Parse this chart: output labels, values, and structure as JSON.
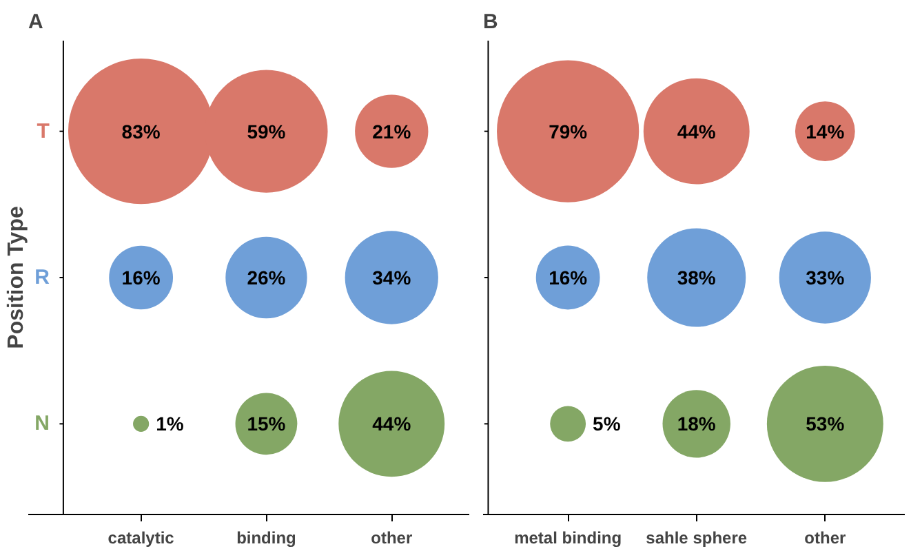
{
  "chart_data": [
    {
      "type": "other",
      "title": "A",
      "ylabel": "Position Type",
      "categories": [
        "catalytic",
        "binding",
        "other"
      ],
      "series": [
        {
          "name": "T",
          "color": "#d9786a",
          "values": [
            83,
            59,
            21
          ],
          "value_labels": [
            "83%",
            "59%",
            "21%"
          ]
        },
        {
          "name": "R",
          "color": "#6f9fd8",
          "values": [
            16,
            26,
            34
          ],
          "value_labels": [
            "16%",
            "26%",
            "34%"
          ]
        },
        {
          "name": "N",
          "color": "#84a765",
          "values": [
            1,
            15,
            44
          ],
          "value_labels": [
            "1%",
            "15%",
            "44%"
          ]
        }
      ]
    },
    {
      "type": "other",
      "title": "B",
      "categories": [
        "metal binding",
        "sahle sphere",
        "other"
      ],
      "series": [
        {
          "color": "#d9786a",
          "values": [
            79,
            44,
            14
          ],
          "value_labels": [
            "79%",
            "44%",
            "14%"
          ]
        },
        {
          "color": "#6f9fd8",
          "values": [
            16,
            38,
            33
          ],
          "value_labels": [
            "16%",
            "38%",
            "33%"
          ]
        },
        {
          "color": "#84a765",
          "values": [
            5,
            18,
            53
          ],
          "value_labels": [
            "5%",
            "18%",
            "53%"
          ]
        }
      ]
    }
  ]
}
